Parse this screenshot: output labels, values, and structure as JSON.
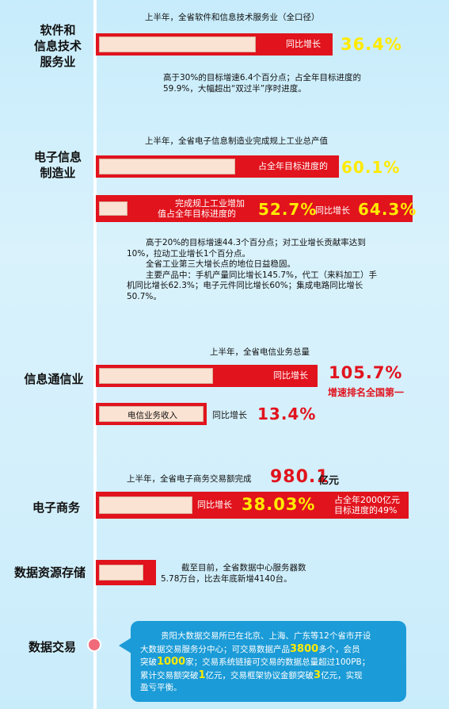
{
  "categories": {
    "software": [
      "软件和",
      "信息技术",
      "服务业"
    ],
    "electronics": [
      "电子信息",
      "制造业"
    ],
    "telecom": "信息通信业",
    "ecommerce": "电子商务",
    "datastorage": "数据资源存储",
    "datatrade": "数据交易"
  },
  "software": {
    "caption": "上半年，全省软件和信息技术服务业（全口径）",
    "bar_label": "同比增长",
    "value": "36.4%",
    "value_fraction": 0.364,
    "note": [
      "高于30%的目标增速6.4个百分点；占全年目标进度的",
      "59.9%，大幅超出“双过半”序时进度。"
    ]
  },
  "electronics": {
    "caption": "上半年，全省电子信息制造业完成规上工业总产值",
    "bar1_label": "占全年目标进度的",
    "bar1_value": "60.1%",
    "bar1_fraction": 0.601,
    "bar2_label": [
      "完成规上工业增加",
      "值占全年目标进度的"
    ],
    "bar2_value": "52.7%",
    "bar2_fraction": 0.527,
    "growth_label": "同比增长",
    "growth_value": "64.3%",
    "note": [
      "高于20%的目标增速44.3个百分点；对工业增长贡献率达到",
      "10%，拉动工业增长1个百分点。",
      "全省工业第三大增长点的地位日益稳固。",
      "主要产品中：手机产量同比增长145.7%，代工（来料加工）手",
      "机同比增长62.3%；电子元件同比增长60%；集成电路同比增长",
      "50.7%。"
    ]
  },
  "telecom": {
    "caption": "上半年，全省电信业务总量",
    "bar1_label": "同比增长",
    "bar1_value": "105.7%",
    "bar1_fraction": 1.057,
    "rank": "增速排名全国第一",
    "bar2_label": "电信业务收入",
    "growth_label": "同比增长",
    "bar2_value": "13.4%",
    "bar2_fraction": 0.134
  },
  "ecommerce": {
    "caption": "上半年，全省电子商务交易额完成",
    "amount": "980.1",
    "unit": "亿元",
    "bar_label": "同比增长",
    "value": "38.03%",
    "value_fraction": 0.3803,
    "target_note": [
      "占全年2000亿元",
      "目标进度的49%"
    ],
    "target_fraction": 0.49
  },
  "datastorage": {
    "note": [
      "截至目前，全省数据中心服务器数",
      "5.78万台，比去年底新增4140台。"
    ]
  },
  "datatrade": {
    "t1": "贵阳大数据交易所已在北京、上海、广东等12个省市开设",
    "t2": "大数据交易服务分中心；可交易数据产品",
    "n1": "3800",
    "t3": "多个，会员",
    "t4": "突破",
    "n2": "1000",
    "t5": "家；交易系统链接可交易的数据总量超过100PB；",
    "t6": "累计交易额突破",
    "n3": "1",
    "t7": "亿元，交易框架协议金额突破",
    "n4": "3",
    "t8": "亿元，实现",
    "t9": "盈亏平衡。"
  },
  "colors": {
    "accent_red": "#e1131d",
    "highlight_yellow": "#ffea00",
    "bubble_blue": "#1b9bd7",
    "background": "#c7ecfb"
  }
}
